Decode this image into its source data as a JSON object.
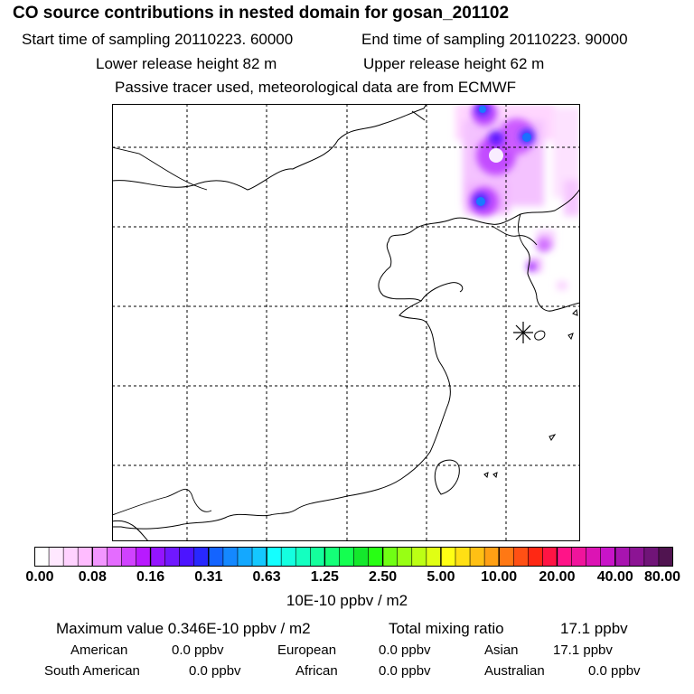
{
  "title": "CO  source contributions in nested domain for gosan_201102",
  "info": {
    "start_time": "Start time of sampling 20110223. 60000",
    "end_time": "End time of sampling 20110223. 90000",
    "lower_height": "Lower release height   82 m",
    "upper_height": "Upper release height   62 m",
    "tracer_note": "Passive tracer used, meteorological data are from ECMWF"
  },
  "colorbar": {
    "ticks": [
      "0.00",
      "0.08",
      "0.16",
      "0.31",
      "0.63",
      "1.25",
      "2.50",
      "5.00",
      "10.00",
      "20.00",
      "40.00",
      "80.00"
    ],
    "colors": [
      "#ffffff",
      "#ffe8ff",
      "#ffd2ff",
      "#ffbcff",
      "#f296ff",
      "#e46cff",
      "#d042ff",
      "#b81aff",
      "#9414ff",
      "#7018ff",
      "#4c14ff",
      "#2828ff",
      "#1464ff",
      "#1488ff",
      "#14a8ff",
      "#14c8ff",
      "#14ffff",
      "#14ffe0",
      "#14ffc0",
      "#14ff9c",
      "#14ff78",
      "#14ff50",
      "#14e82c",
      "#28ff14",
      "#70ff14",
      "#98ff14",
      "#bcff14",
      "#e0ff14",
      "#ffff14",
      "#ffe014",
      "#ffc014",
      "#ffa014",
      "#ff7814",
      "#ff5014",
      "#ff2814",
      "#ff1444",
      "#ff1488",
      "#f0149c",
      "#dc14b4",
      "#c814c8",
      "#a814b0",
      "#8c1494",
      "#701478",
      "#501450"
    ],
    "unit": "10E-10 ppbv / m2"
  },
  "summary": {
    "max_label": "Maximum value  0.346E-10 ppbv / m2",
    "total_label": "Total mixing ratio",
    "total_value": "17.1 ppbv",
    "american_label": "American",
    "american_value": "0.0 ppbv",
    "european_label": "European",
    "european_value": "0.0 ppbv",
    "asian_label": "Asian",
    "asian_value": "17.1 ppbv",
    "south_american_label": "South American",
    "south_american_value": "0.0 ppbv",
    "african_label": "African",
    "african_value": "0.0 ppbv",
    "australian_label": "Australian",
    "australian_value": "0.0 ppbv"
  }
}
